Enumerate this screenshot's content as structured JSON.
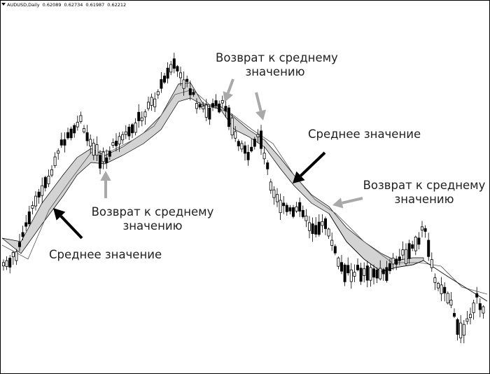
{
  "header": {
    "symbol": "AUDUSD,Daily",
    "open": "0.62089",
    "high": "0.62734",
    "low": "0.61987",
    "close": "0.62212"
  },
  "annotations": {
    "reversion_top_center_line1": "Возврат к среднему",
    "reversion_top_center_line2": "значению",
    "mean_right": "Среднее значение",
    "reversion_right_line1": "Возврат к среднему",
    "reversion_right_line2": "значению",
    "reversion_left_line1": "Возврат к среднему",
    "reversion_left_line2": "значению",
    "mean_left": "Среднее значение"
  },
  "colors": {
    "background": "#ffffff",
    "candle": "#000000",
    "band_fill": "#d3d3d3",
    "arrow_black": "#000000",
    "arrow_gray": "#a9a9a9",
    "ma_line": "#555555"
  },
  "chart_data": {
    "type": "candlestick",
    "symbol": "AUDUSD",
    "timeframe": "Daily",
    "indicators": [
      "moving-average-band",
      "moving-average-line"
    ]
  }
}
